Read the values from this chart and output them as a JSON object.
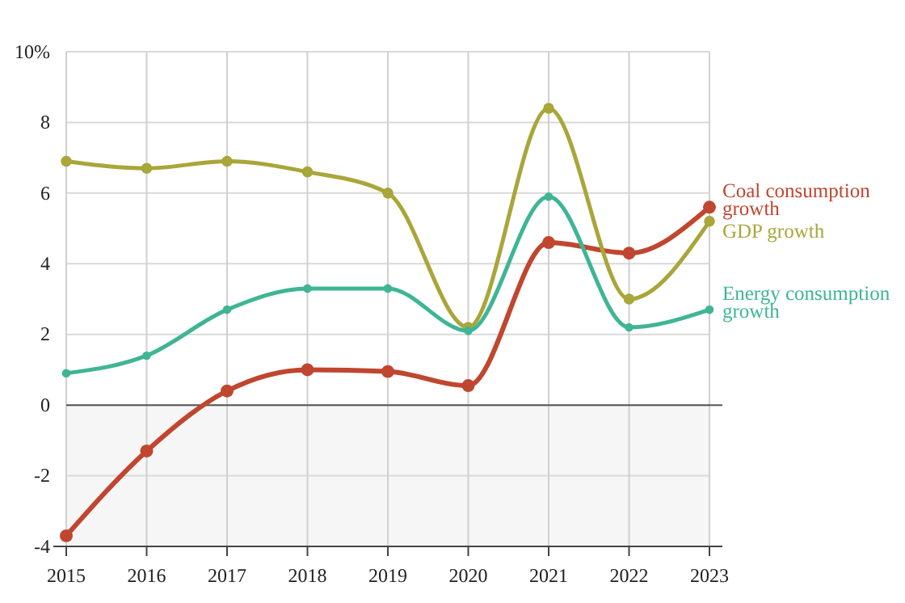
{
  "chart_data": {
    "type": "line",
    "categories": [
      "2015",
      "2016",
      "2017",
      "2018",
      "2019",
      "2020",
      "2021",
      "2022",
      "2023"
    ],
    "series": [
      {
        "name": "Coal consumption growth",
        "color": "#c0462f",
        "values": [
          -3.7,
          -1.3,
          0.4,
          1.0,
          0.95,
          0.55,
          4.6,
          4.3,
          5.6
        ]
      },
      {
        "name": "GDP growth",
        "color": "#a9a63a",
        "values": [
          6.9,
          6.7,
          6.9,
          6.6,
          6.0,
          2.2,
          8.4,
          3.0,
          5.2
        ]
      },
      {
        "name": "Energy consumption growth",
        "color": "#3fb595",
        "values": [
          0.9,
          1.4,
          2.7,
          3.3,
          3.3,
          2.1,
          5.9,
          2.2,
          2.7
        ]
      }
    ],
    "ylim": [
      -4,
      10
    ],
    "yticks": [
      -4,
      -2,
      0,
      2,
      4,
      6,
      8,
      {
        "value": 10,
        "label": "10%"
      }
    ],
    "grid": true,
    "legend": false,
    "marker": "circle",
    "line_style": "solid",
    "bands": [
      {
        "axis": "y",
        "from": -4,
        "to": 0,
        "color": "#f6f6f6"
      }
    ],
    "ref_lines": [
      {
        "axis": "y",
        "value": 0,
        "color": "#555555"
      }
    ]
  }
}
